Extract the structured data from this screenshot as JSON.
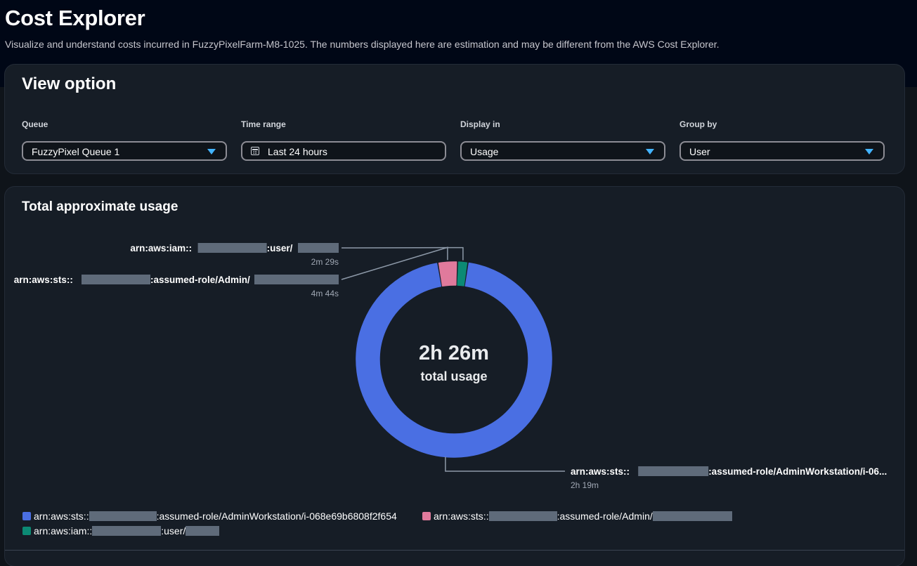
{
  "header": {
    "title": "Cost Explorer",
    "description": "Visualize and understand costs incurred in FuzzyPixelFarm-M8-1025. The numbers displayed here are estimation and may be different from the AWS Cost Explorer."
  },
  "view_option": {
    "title": "View option",
    "fields": [
      {
        "label": "Queue",
        "value": "FuzzyPixel Queue 1"
      },
      {
        "label": "Time range",
        "value": "Last 24 hours"
      },
      {
        "label": "Display in",
        "value": "Usage"
      },
      {
        "label": "Group by",
        "value": "User"
      }
    ]
  },
  "usage": {
    "title": "Total approximate usage",
    "center_value": "2h 26m",
    "center_label": "total usage"
  },
  "colors": {
    "blue": "#4a6fe3",
    "pink": "#e07a9c",
    "teal": "#0c8a74",
    "redaction": "#5f6b7a"
  },
  "chart_data": {
    "type": "pie",
    "title": "Total approximate usage",
    "unit": "minutes",
    "total_minutes": 146,
    "slices": [
      {
        "name": "arn:aws:sts::",
        "label_suffix": ":assumed-role/AdminWorkstation/i-06...",
        "legend_suffix": ":assumed-role/AdminWorkstation/i-068e69b6808f2f654",
        "value": 139,
        "value_label": "2h 19m",
        "color": "#4a6fe3"
      },
      {
        "name": "arn:aws:sts::",
        "label_suffix": ":assumed-role/Admin/",
        "legend_suffix": ":assumed-role/Admin/",
        "value": 4.73,
        "value_label": "4m 44s",
        "color": "#e07a9c"
      },
      {
        "name": "arn:aws:iam::",
        "label_suffix": ":user/",
        "legend_suffix": ":user/",
        "value": 2.48,
        "value_label": "2m 29s",
        "color": "#0c8a74"
      }
    ]
  }
}
